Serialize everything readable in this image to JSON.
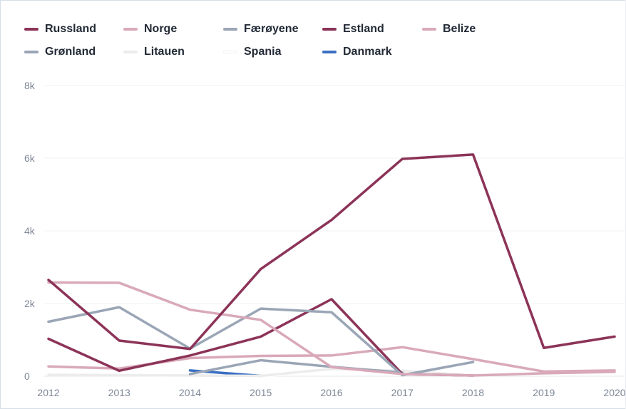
{
  "chart_data": {
    "type": "line",
    "x": [
      "2012",
      "2013",
      "2014",
      "2015",
      "2016",
      "2017",
      "2018",
      "2019",
      "2020"
    ],
    "ylim": [
      0,
      8000
    ],
    "yticks": [
      {
        "value": 0,
        "label": "0"
      },
      {
        "value": 2000,
        "label": "2k"
      },
      {
        "value": 4000,
        "label": "4k"
      },
      {
        "value": 6000,
        "label": "6k"
      },
      {
        "value": 8000,
        "label": "8k"
      }
    ],
    "grid": true,
    "legend_position": "top",
    "series": [
      {
        "name": "Russland",
        "color": "#8c3358",
        "values": [
          2650,
          980,
          750,
          2950,
          4300,
          5980,
          6100,
          780,
          1090
        ]
      },
      {
        "name": "Norge",
        "color": "#d9a9b9",
        "values": [
          2580,
          2570,
          1830,
          1550,
          250,
          60,
          20,
          80,
          120
        ]
      },
      {
        "name": "Færøyene",
        "color": "#9aa6b6",
        "values": [
          1500,
          1900,
          760,
          1860,
          1760,
          30,
          390,
          null,
          null
        ]
      },
      {
        "name": "Estland",
        "color": "#8c3358",
        "values": [
          1030,
          150,
          570,
          1090,
          2120,
          60,
          20,
          null,
          null
        ]
      },
      {
        "name": "Belize",
        "color": "#d9a9b9",
        "values": [
          270,
          210,
          500,
          560,
          570,
          800,
          470,
          130,
          160
        ]
      },
      {
        "name": "Grønland",
        "color": "#9aa6b6",
        "values": [
          null,
          null,
          60,
          440,
          260,
          100,
          null,
          null,
          null
        ]
      },
      {
        "name": "Litauen",
        "color": "#ececec",
        "values": [
          40,
          30,
          20,
          10,
          200,
          150,
          20,
          null,
          null
        ]
      },
      {
        "name": "Spania",
        "color": "#ffffff",
        "values": [
          null,
          null,
          null,
          10,
          100,
          180,
          null,
          null,
          null
        ]
      },
      {
        "name": "Danmark",
        "color": "#3a6fc3",
        "values": [
          null,
          null,
          160,
          10,
          null,
          null,
          null,
          null,
          null
        ]
      }
    ]
  }
}
